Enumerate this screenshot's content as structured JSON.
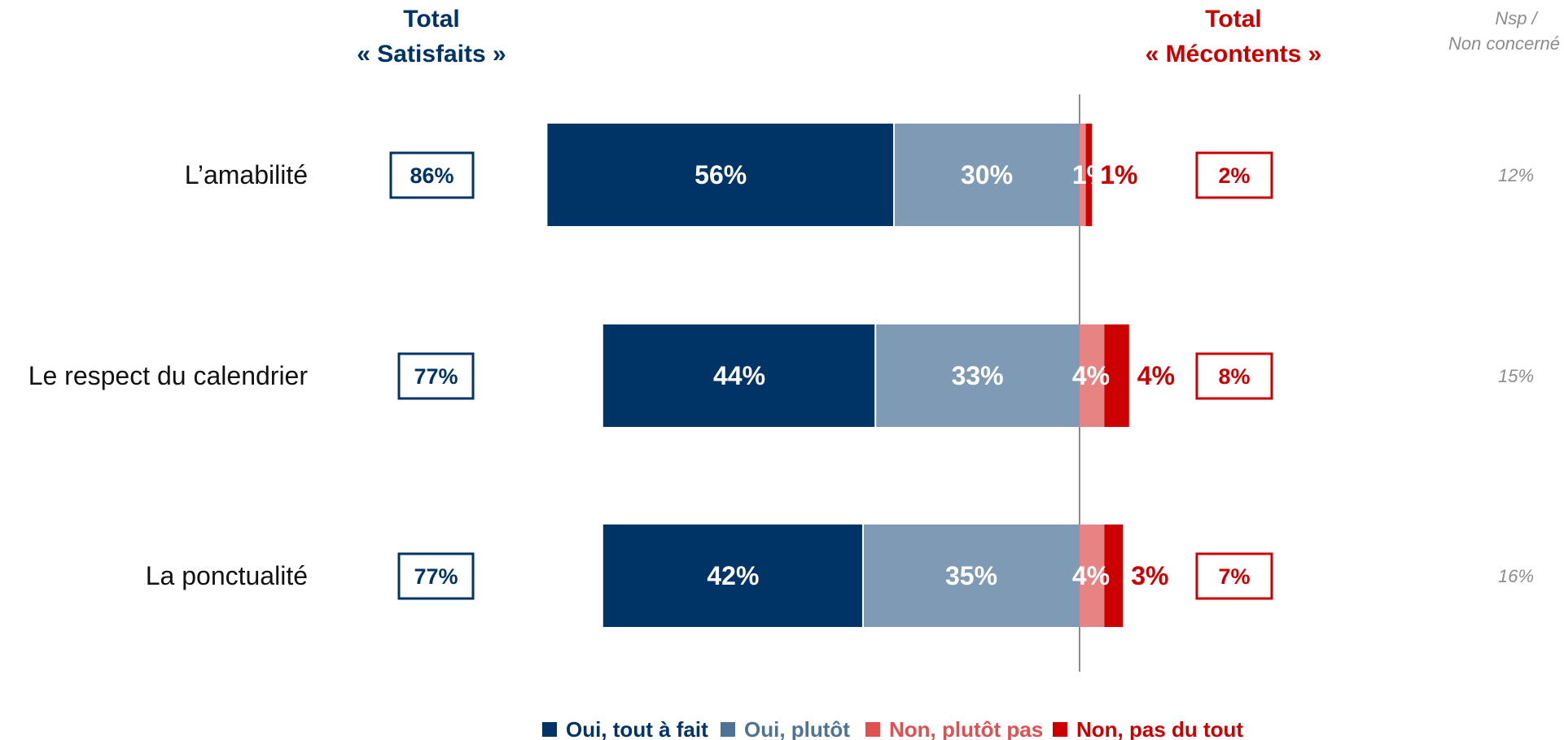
{
  "headers": {
    "satisfied": [
      "Total",
      "« Satisfaits »"
    ],
    "discontent": [
      "Total",
      "« Mécontents »"
    ],
    "nsp": [
      "Nsp /",
      "Non concerné"
    ]
  },
  "colors": {
    "navy": "#003366",
    "steel": "#7f9ab4",
    "pink": "#e88383",
    "red": "#cc0000",
    "divider": "#8c8c8c",
    "nsp": "#8c8c8c"
  },
  "chart_data": {
    "type": "bar",
    "orientation": "horizontal-diverging",
    "categories": [
      "L’amabilité",
      "Le respect du calendrier",
      "La ponctualité"
    ],
    "series": [
      {
        "name": "Oui, tout à fait",
        "values": [
          56,
          44,
          42
        ],
        "labels": [
          "56%",
          "44%",
          "42%"
        ]
      },
      {
        "name": "Oui, plutôt",
        "values": [
          30,
          33,
          35
        ],
        "labels": [
          "30%",
          "33%",
          "35%"
        ]
      },
      {
        "name": "Non, plutôt pas",
        "values": [
          1,
          4,
          4
        ],
        "labels": [
          "1%",
          "4%",
          "4%"
        ]
      },
      {
        "name": "Non, pas du tout",
        "values": [
          1,
          4,
          3
        ],
        "labels": [
          "1%",
          "4%",
          "3%"
        ]
      }
    ],
    "totals_satisfied": [
      "86%",
      "77%",
      "77%"
    ],
    "totals_discontent": [
      "2%",
      "8%",
      "7%"
    ],
    "nsp": [
      "12%",
      "15%",
      "16%"
    ],
    "legend_position": "bottom"
  }
}
